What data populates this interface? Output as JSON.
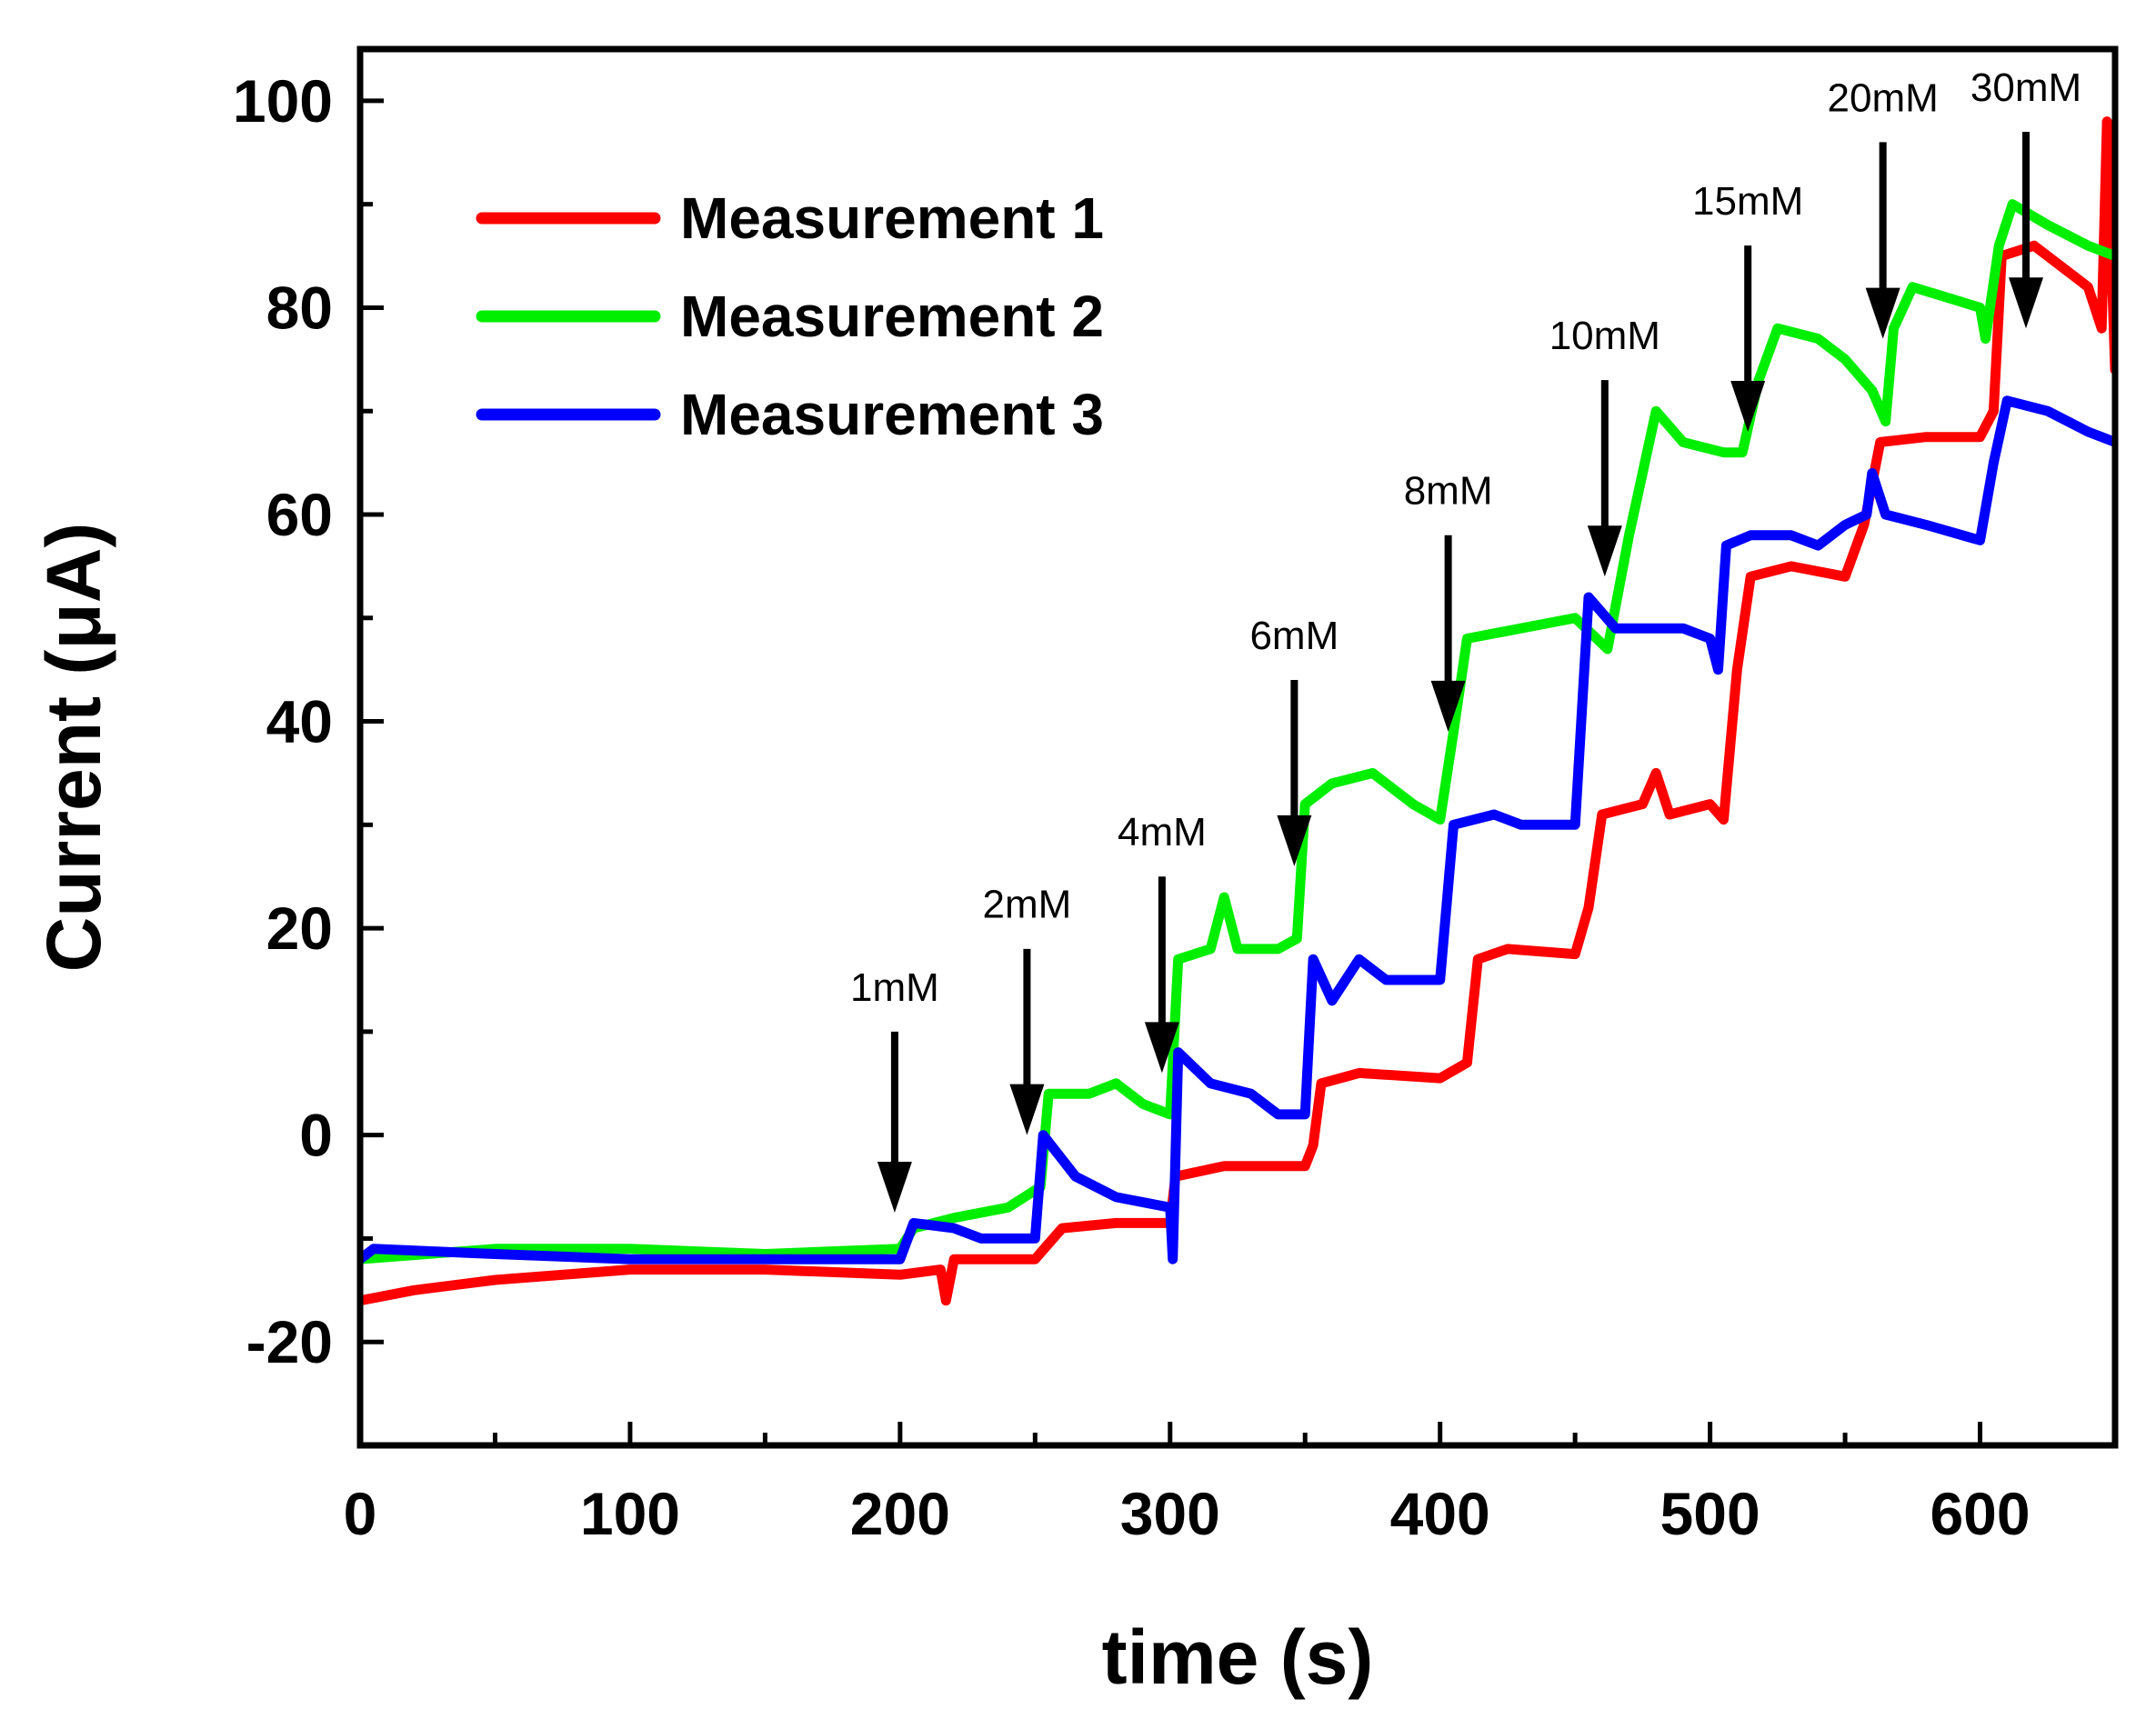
{
  "chart_data": {
    "type": "line",
    "title": "",
    "xlabel": "time (s)",
    "ylabel": "Current (μA)",
    "xlim": [
      0,
      650
    ],
    "ylim": [
      -30,
      105
    ],
    "x_ticks": [
      0,
      100,
      200,
      300,
      400,
      500,
      600
    ],
    "y_ticks": [
      -20,
      0,
      20,
      40,
      60,
      80,
      100
    ],
    "x_tick_labels": [
      "0",
      "100",
      "200",
      "300",
      "400",
      "500",
      "600"
    ],
    "y_tick_labels": [
      "-20",
      "0",
      "20",
      "40",
      "60",
      "80",
      "100"
    ],
    "legend_position": "top-left",
    "series": [
      {
        "name": "Measurement 1",
        "color": "#ff0000",
        "points": [
          [
            0,
            -16
          ],
          [
            20,
            -15
          ],
          [
            50,
            -14
          ],
          [
            100,
            -13
          ],
          [
            150,
            -13
          ],
          [
            200,
            -13.5
          ],
          [
            215,
            -13
          ],
          [
            217,
            -16
          ],
          [
            220,
            -12
          ],
          [
            250,
            -12
          ],
          [
            260,
            -9
          ],
          [
            280,
            -8.5
          ],
          [
            300,
            -8.5
          ],
          [
            302,
            -4
          ],
          [
            320,
            -3
          ],
          [
            350,
            -3
          ],
          [
            353,
            -1
          ],
          [
            356,
            5
          ],
          [
            370,
            6
          ],
          [
            400,
            5.5
          ],
          [
            410,
            7
          ],
          [
            414,
            17
          ],
          [
            425,
            18
          ],
          [
            450,
            17.5
          ],
          [
            455,
            22
          ],
          [
            460,
            31
          ],
          [
            475,
            32
          ],
          [
            480,
            35
          ],
          [
            485,
            31
          ],
          [
            500,
            32
          ],
          [
            505,
            30.5
          ],
          [
            510,
            45
          ],
          [
            515,
            54
          ],
          [
            530,
            55
          ],
          [
            550,
            54
          ],
          [
            557,
            59
          ],
          [
            563,
            67
          ],
          [
            580,
            67.5
          ],
          [
            600,
            67.5
          ],
          [
            605,
            70
          ],
          [
            608,
            85
          ],
          [
            620,
            86
          ],
          [
            640,
            82
          ],
          [
            645,
            78
          ],
          [
            647,
            98
          ],
          [
            650,
            74
          ]
        ]
      },
      {
        "name": "Measurement 2",
        "color": "#00ee00",
        "points": [
          [
            0,
            -12
          ],
          [
            50,
            -11
          ],
          [
            100,
            -11
          ],
          [
            150,
            -11.5
          ],
          [
            200,
            -11
          ],
          [
            205,
            -9
          ],
          [
            220,
            -8
          ],
          [
            240,
            -7
          ],
          [
            252,
            -5
          ],
          [
            255,
            4
          ],
          [
            270,
            4
          ],
          [
            280,
            5
          ],
          [
            290,
            3
          ],
          [
            300,
            2
          ],
          [
            303,
            17
          ],
          [
            315,
            18
          ],
          [
            320,
            23
          ],
          [
            325,
            18
          ],
          [
            340,
            18
          ],
          [
            347,
            19
          ],
          [
            350,
            32
          ],
          [
            360,
            34
          ],
          [
            375,
            35
          ],
          [
            390,
            32
          ],
          [
            400,
            30.5
          ],
          [
            405,
            39
          ],
          [
            410,
            48
          ],
          [
            430,
            49
          ],
          [
            450,
            50
          ],
          [
            462,
            47
          ],
          [
            470,
            58
          ],
          [
            480,
            70
          ],
          [
            490,
            67
          ],
          [
            505,
            66
          ],
          [
            512,
            66
          ],
          [
            518,
            73
          ],
          [
            525,
            78
          ],
          [
            540,
            77
          ],
          [
            550,
            75
          ],
          [
            560,
            72
          ],
          [
            565,
            69
          ],
          [
            568,
            78
          ],
          [
            575,
            82
          ],
          [
            600,
            80
          ],
          [
            602,
            77
          ],
          [
            607,
            86
          ],
          [
            612,
            90
          ],
          [
            625,
            88
          ],
          [
            640,
            86
          ],
          [
            650,
            85
          ]
        ]
      },
      {
        "name": "Measurement 3",
        "color": "#0000ff",
        "points": [
          [
            0,
            -12
          ],
          [
            5,
            -11
          ],
          [
            50,
            -11.5
          ],
          [
            100,
            -12
          ],
          [
            150,
            -12
          ],
          [
            200,
            -12
          ],
          [
            205,
            -8.5
          ],
          [
            220,
            -9
          ],
          [
            230,
            -10
          ],
          [
            250,
            -10
          ],
          [
            253,
            0
          ],
          [
            265,
            -4
          ],
          [
            280,
            -6
          ],
          [
            300,
            -7
          ],
          [
            301,
            -12
          ],
          [
            303,
            8
          ],
          [
            315,
            5
          ],
          [
            330,
            4
          ],
          [
            340,
            2
          ],
          [
            350,
            2
          ],
          [
            353,
            17
          ],
          [
            360,
            13
          ],
          [
            370,
            17
          ],
          [
            380,
            15
          ],
          [
            400,
            15
          ],
          [
            405,
            30
          ],
          [
            420,
            31
          ],
          [
            430,
            30
          ],
          [
            450,
            30
          ],
          [
            455,
            52
          ],
          [
            465,
            49
          ],
          [
            490,
            49
          ],
          [
            500,
            48
          ],
          [
            503,
            45
          ],
          [
            506,
            57
          ],
          [
            515,
            58
          ],
          [
            530,
            58
          ],
          [
            540,
            57
          ],
          [
            550,
            59
          ],
          [
            558,
            60
          ],
          [
            560,
            64
          ],
          [
            565,
            60
          ],
          [
            580,
            59
          ],
          [
            600,
            57.5
          ],
          [
            605,
            65
          ],
          [
            610,
            71
          ],
          [
            625,
            70
          ],
          [
            640,
            68
          ],
          [
            650,
            67
          ]
        ]
      }
    ],
    "annotations": [
      {
        "label": "1mM",
        "x": 198,
        "y_tip": -7.5,
        "y_top": 10,
        "y_label": 13
      },
      {
        "label": "2mM",
        "x": 247,
        "y_tip": 0,
        "y_top": 18,
        "y_label": 21
      },
      {
        "label": "4mM",
        "x": 297,
        "y_tip": 6,
        "y_top": 25,
        "y_label": 28
      },
      {
        "label": "6mM",
        "x": 346,
        "y_tip": 26,
        "y_top": 44,
        "y_label": 47
      },
      {
        "label": "8mM",
        "x": 403,
        "y_tip": 39,
        "y_top": 58,
        "y_label": 61
      },
      {
        "label": "10mM",
        "x": 461,
        "y_tip": 54,
        "y_top": 73,
        "y_label": 76
      },
      {
        "label": "15mM",
        "x": 514,
        "y_tip": 68,
        "y_top": 86,
        "y_label": 89
      },
      {
        "label": "20mM",
        "x": 564,
        "y_tip": 77,
        "y_top": 96,
        "y_label": 99
      },
      {
        "label": "30mM",
        "x": 617,
        "y_tip": 78,
        "y_top": 97,
        "y_label": 100
      }
    ]
  }
}
